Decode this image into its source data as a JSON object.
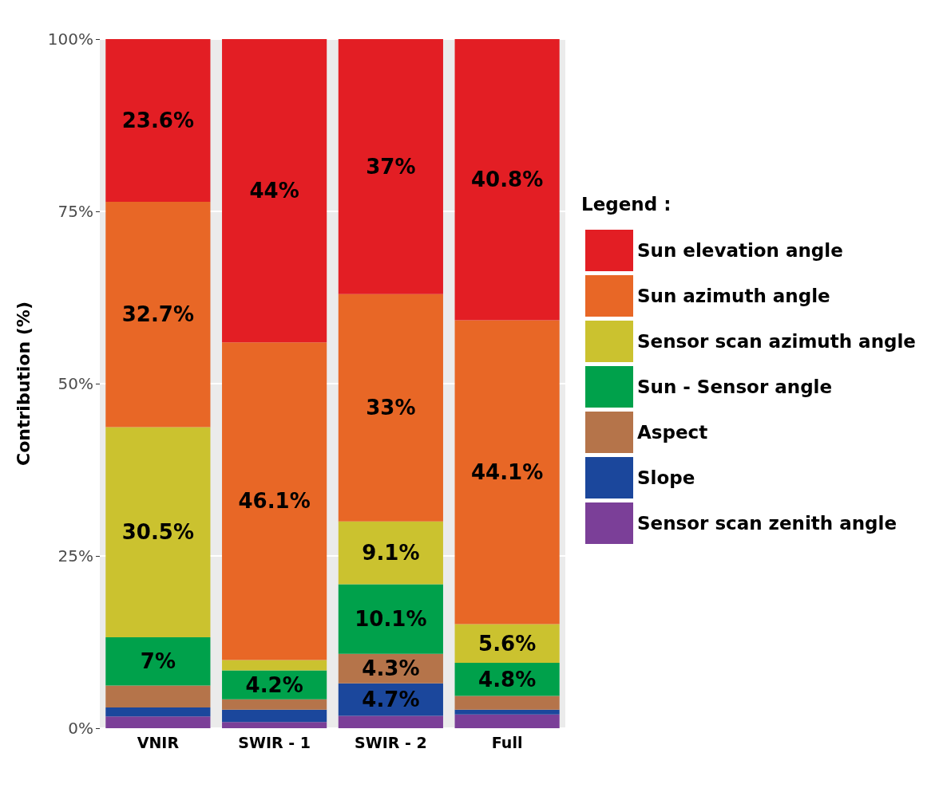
{
  "chart_data": {
    "type": "bar",
    "stacked": true,
    "ylabel": "Contribution (%)",
    "legend_title": "Legend :",
    "legend": "right",
    "grid": "y",
    "categories": [
      "VNIR",
      "SWIR - 1",
      "SWIR - 2",
      "Full"
    ],
    "ylim": [
      0,
      100
    ],
    "yticks": [
      {
        "value": 0,
        "label": "0%"
      },
      {
        "value": 25,
        "label": "25%"
      },
      {
        "value": 50,
        "label": "50%"
      },
      {
        "value": 75,
        "label": "75%"
      },
      {
        "value": 100,
        "label": "100%"
      }
    ],
    "series": [
      {
        "name": "Sensor scan zenith angle",
        "color": "#7b3f98",
        "values": [
          1.7,
          0.9,
          1.8,
          2.0
        ],
        "value_labels": [
          null,
          null,
          null,
          null
        ]
      },
      {
        "name": "Slope",
        "color": "#1b479c",
        "values": [
          1.3,
          1.8,
          4.7,
          0.7
        ],
        "value_labels": [
          null,
          null,
          "4.7%",
          null
        ]
      },
      {
        "name": "Aspect",
        "color": "#b5744a",
        "values": [
          3.2,
          1.5,
          4.3,
          2.0
        ],
        "value_labels": [
          null,
          null,
          "4.3%",
          null
        ]
      },
      {
        "name": "Sun - Sensor angle",
        "color": "#00a14b",
        "values": [
          7,
          4.2,
          10.1,
          4.8
        ],
        "value_labels": [
          "7%",
          "4.2%",
          "10.1%",
          "4.8%"
        ]
      },
      {
        "name": "Sensor scan azimuth angle",
        "color": "#cbc22f",
        "values": [
          30.5,
          1.5,
          9.1,
          5.6
        ],
        "value_labels": [
          "30.5%",
          null,
          "9.1%",
          "5.6%"
        ]
      },
      {
        "name": "Sun azimuth angle",
        "color": "#e86726",
        "values": [
          32.7,
          46.1,
          33,
          44.1
        ],
        "value_labels": [
          "32.7%",
          "46.1%",
          "33%",
          "44.1%"
        ]
      },
      {
        "name": "Sun elevation angle",
        "color": "#e31e24",
        "values": [
          23.6,
          44,
          37,
          40.8
        ],
        "value_labels": [
          "23.6%",
          "44%",
          "37%",
          "40.8%"
        ]
      }
    ]
  }
}
